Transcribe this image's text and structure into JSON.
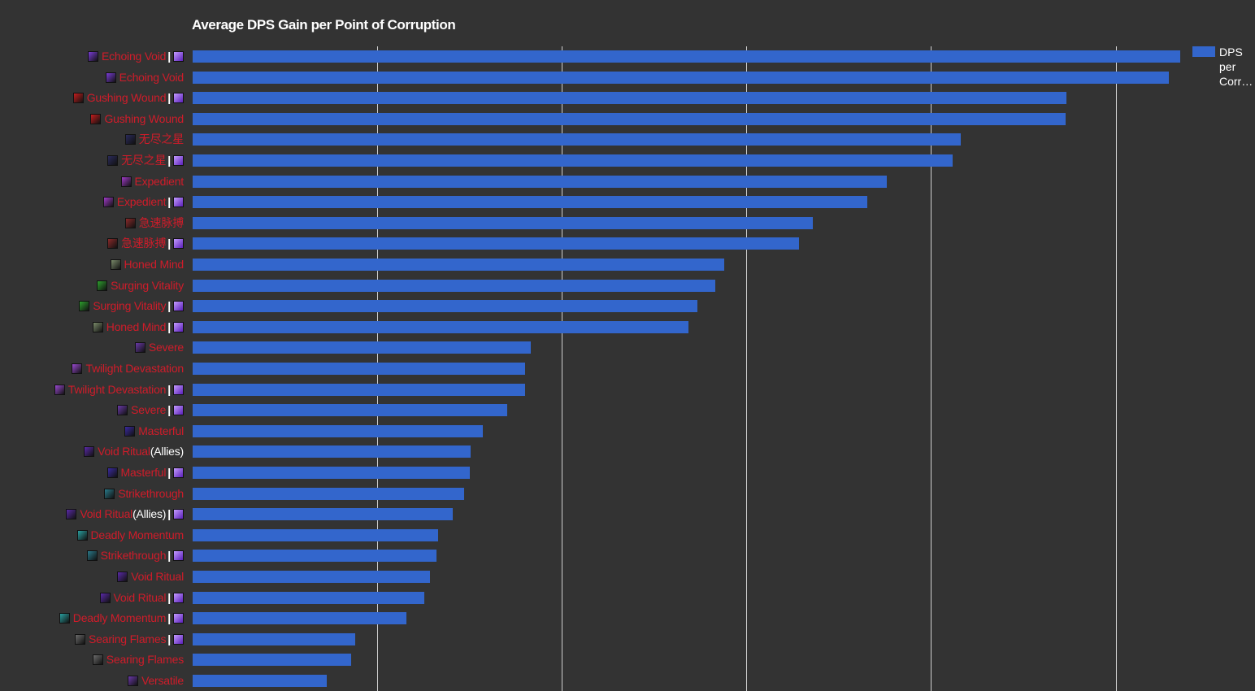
{
  "chart_data": {
    "type": "bar",
    "orientation": "horizontal",
    "title": "Average DPS Gain per Point of Corruption",
    "legend": {
      "label": "DPS per Corr…",
      "position": "top-right",
      "color": "#3366cc"
    },
    "grid": true,
    "xlim": [
      0,
      107
    ],
    "bar_color": "#3366cc",
    "label_color": "#d01c2a",
    "categories": [
      {
        "name": "Echoing Void",
        "essence": true,
        "icon_color": "#7a3dd6"
      },
      {
        "name": "Echoing Void",
        "essence": false,
        "icon_color": "#7a3dd6"
      },
      {
        "name": "Gushing Wound",
        "essence": true,
        "icon_color": "#c41e1e"
      },
      {
        "name": "Gushing Wound",
        "essence": false,
        "icon_color": "#c41e1e"
      },
      {
        "name": "无尽之星",
        "essence": false,
        "icon_color": "#2a2a5a"
      },
      {
        "name": "无尽之星",
        "essence": true,
        "icon_color": "#2a2a5a"
      },
      {
        "name": "Expedient",
        "essence": false,
        "icon_color": "#a03cc8"
      },
      {
        "name": "Expedient",
        "essence": true,
        "icon_color": "#a03cc8"
      },
      {
        "name": "急速脉搏",
        "essence": false,
        "icon_color": "#8a2a2a"
      },
      {
        "name": "急速脉搏",
        "essence": true,
        "icon_color": "#8a2a2a"
      },
      {
        "name": "Honed Mind",
        "essence": false,
        "icon_color": "#7a8a6a"
      },
      {
        "name": "Surging Vitality",
        "essence": false,
        "icon_color": "#2ea02e"
      },
      {
        "name": "Surging Vitality",
        "essence": true,
        "icon_color": "#2ea02e"
      },
      {
        "name": "Honed Mind",
        "essence": true,
        "icon_color": "#7a8a6a"
      },
      {
        "name": "Severe",
        "essence": false,
        "icon_color": "#6a3aa8"
      },
      {
        "name": "Twilight Devastation",
        "essence": false,
        "icon_color": "#9a4ad0"
      },
      {
        "name": "Twilight Devastation",
        "essence": true,
        "icon_color": "#9a4ad0"
      },
      {
        "name": "Severe",
        "essence": true,
        "icon_color": "#6a3aa8"
      },
      {
        "name": "Masterful",
        "essence": false,
        "icon_color": "#3a2aa0"
      },
      {
        "name": "Void Ritual",
        "suffix": "(Allies)",
        "essence": false,
        "icon_color": "#5a2aa8"
      },
      {
        "name": "Masterful",
        "essence": true,
        "icon_color": "#3a2aa0"
      },
      {
        "name": "Strikethrough",
        "essence": false,
        "icon_color": "#2a7a8a"
      },
      {
        "name": "Void Ritual",
        "suffix": "(Allies)",
        "essence": true,
        "icon_color": "#5a2aa8"
      },
      {
        "name": "Deadly Momentum",
        "essence": false,
        "icon_color": "#2aa0a0"
      },
      {
        "name": "Strikethrough",
        "essence": true,
        "icon_color": "#2a7a8a"
      },
      {
        "name": "Void Ritual",
        "essence": false,
        "icon_color": "#5a2aa8"
      },
      {
        "name": "Void Ritual",
        "essence": true,
        "icon_color": "#5a2aa8"
      },
      {
        "name": "Deadly Momentum",
        "essence": true,
        "icon_color": "#2aa0a0"
      },
      {
        "name": "Searing Flames",
        "essence": true,
        "icon_color": "#6a6a6a"
      },
      {
        "name": "Searing Flames",
        "essence": false,
        "icon_color": "#6a6a6a"
      },
      {
        "name": "Versatile",
        "essence": false,
        "icon_color": "#6a3aa8"
      }
    ],
    "values": [
      107.0,
      105.8,
      94.7,
      94.6,
      83.2,
      82.3,
      75.2,
      73.1,
      67.2,
      65.7,
      57.6,
      56.6,
      54.7,
      53.7,
      36.6,
      36.0,
      36.0,
      34.1,
      31.4,
      30.1,
      30.0,
      29.4,
      28.2,
      26.6,
      26.4,
      25.7,
      25.1,
      23.2,
      17.6,
      17.2,
      14.5
    ]
  }
}
